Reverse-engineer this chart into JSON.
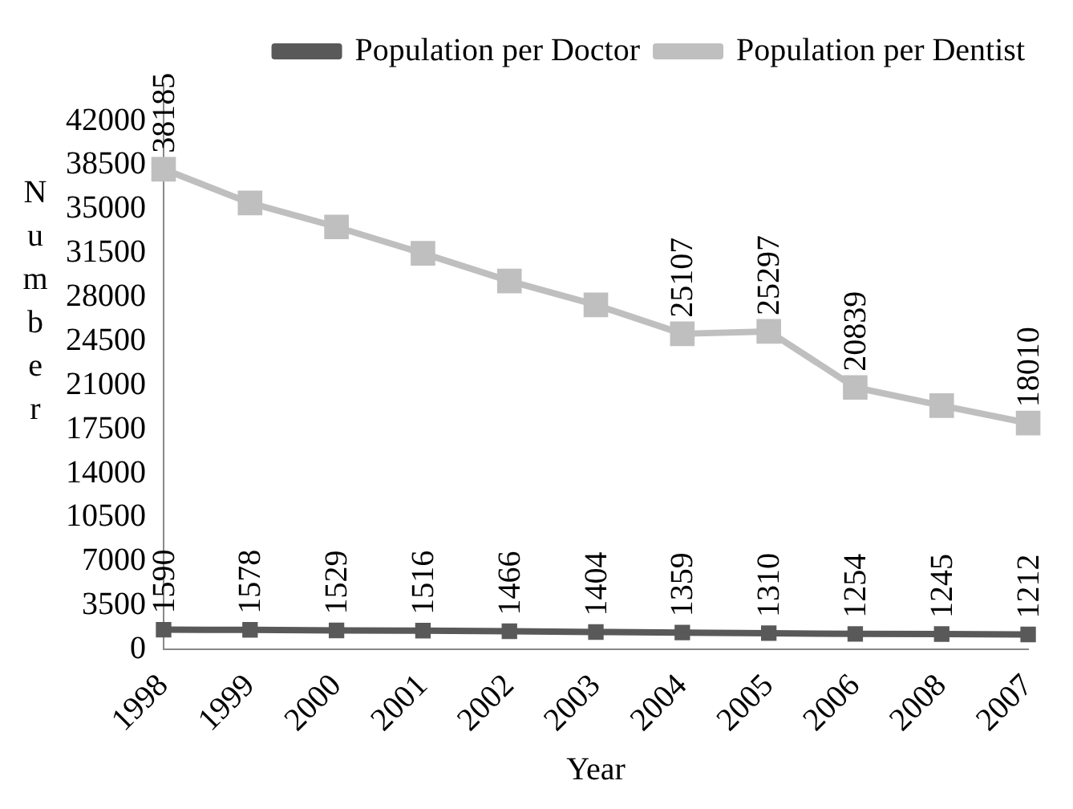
{
  "chart_data": {
    "type": "line",
    "xlabel": "Year",
    "ylabel": "Number",
    "categories": [
      "1998",
      "1999",
      "2000",
      "2001",
      "2002",
      "2003",
      "2004",
      "2005",
      "2006",
      "2008",
      "2007"
    ],
    "series": [
      {
        "name": "Population per Doctor",
        "color": "#595959",
        "values": [
          1590,
          1578,
          1529,
          1516,
          1466,
          1404,
          1359,
          1310,
          1254,
          1245,
          1212
        ],
        "value_labels": [
          "1590",
          "1578",
          "1529",
          "1516",
          "1466",
          "1404",
          "1359",
          "1310",
          "1254",
          "1245",
          "1212"
        ]
      },
      {
        "name": "Population per Dentist",
        "color": "#bfbfbf",
        "values": [
          38185,
          35500,
          33600,
          31500,
          29300,
          27400,
          25107,
          25297,
          20839,
          19400,
          18010
        ],
        "value_labels": [
          "38185",
          null,
          null,
          null,
          null,
          null,
          "25107",
          "25297",
          "20839",
          null,
          "18010"
        ]
      }
    ],
    "ylim": [
      0,
      45000
    ],
    "yticks": [
      0,
      3500,
      7000,
      10500,
      14000,
      17500,
      21000,
      24500,
      28000,
      31500,
      35000,
      38500,
      42000
    ],
    "grid": false,
    "legend": "top right",
    "marker": "square",
    "line_style": "solid"
  }
}
